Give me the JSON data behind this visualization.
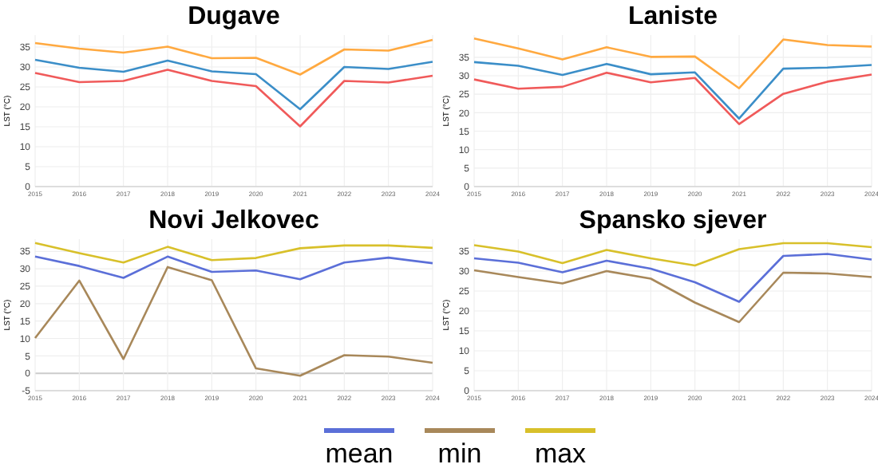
{
  "chart_data": [
    {
      "type": "line",
      "title": "Dugave",
      "ylabel": "LST (°C)",
      "x": [
        2015,
        2016,
        2017,
        2018,
        2019,
        2020,
        2021,
        2022,
        2023,
        2024
      ],
      "xlim": [
        2015,
        2024
      ],
      "xticks": [
        2015,
        2016,
        2017,
        2018,
        2019,
        2020,
        2021,
        2022,
        2023,
        2024
      ],
      "ylim": [
        0,
        38
      ],
      "yticks": [
        0,
        5,
        10,
        15,
        20,
        25,
        30,
        35
      ],
      "grid": true,
      "series": [
        {
          "color": "#3b8ec8",
          "values": [
            31.8,
            29.8,
            28.8,
            31.6,
            28.9,
            28.2,
            19.4,
            30.0,
            29.5,
            31.3
          ]
        },
        {
          "color": "#f05a5a",
          "values": [
            28.5,
            26.2,
            26.5,
            29.3,
            26.5,
            25.2,
            15.1,
            26.5,
            26.1,
            27.8
          ]
        },
        {
          "color": "#ffa940",
          "values": [
            36.0,
            34.6,
            33.6,
            35.1,
            32.2,
            32.3,
            28.1,
            34.4,
            34.1,
            36.8
          ]
        }
      ]
    },
    {
      "type": "line",
      "title": "Laniste",
      "ylabel": "LST (°C)",
      "x": [
        2015,
        2016,
        2017,
        2018,
        2019,
        2020,
        2021,
        2022,
        2023,
        2024
      ],
      "xlim": [
        2015,
        2024
      ],
      "xticks": [
        2015,
        2016,
        2017,
        2018,
        2019,
        2020,
        2021,
        2022,
        2023,
        2024
      ],
      "ylim": [
        0,
        41
      ],
      "yticks": [
        0,
        5,
        10,
        15,
        20,
        25,
        30,
        35
      ],
      "grid": true,
      "series": [
        {
          "color": "#3b8ec8",
          "values": [
            33.7,
            32.7,
            30.2,
            33.2,
            30.4,
            30.9,
            18.4,
            31.9,
            32.2,
            32.9
          ]
        },
        {
          "color": "#f05a5a",
          "values": [
            29.0,
            26.5,
            27.0,
            30.8,
            28.2,
            29.4,
            16.9,
            25.1,
            28.4,
            30.3
          ]
        },
        {
          "color": "#ffa940",
          "values": [
            40.1,
            37.4,
            34.4,
            37.7,
            35.1,
            35.2,
            26.6,
            39.8,
            38.3,
            37.9
          ]
        }
      ]
    },
    {
      "type": "line",
      "title": "Novi Jelkovec",
      "ylabel": "LST (°C)",
      "x": [
        2015,
        2016,
        2017,
        2018,
        2019,
        2020,
        2021,
        2022,
        2023,
        2024
      ],
      "xlim": [
        2015,
        2024
      ],
      "xticks": [
        2015,
        2016,
        2017,
        2018,
        2019,
        2020,
        2021,
        2022,
        2023,
        2024
      ],
      "ylim": [
        -5,
        38.5
      ],
      "yticks": [
        -5,
        0,
        5,
        10,
        15,
        20,
        25,
        30,
        35
      ],
      "grid": true,
      "series": [
        {
          "color": "#5b6fd8",
          "values": [
            33.5,
            30.8,
            27.4,
            33.5,
            29.1,
            29.5,
            27.0,
            31.8,
            33.2,
            31.6
          ]
        },
        {
          "color": "#a8885a",
          "values": [
            10.1,
            26.6,
            4.1,
            30.5,
            26.7,
            1.4,
            -0.7,
            5.2,
            4.8,
            3.0
          ]
        },
        {
          "color": "#d8c02a",
          "values": [
            37.4,
            34.5,
            31.8,
            36.3,
            32.5,
            33.1,
            35.9,
            36.7,
            36.7,
            36.0
          ]
        }
      ]
    },
    {
      "type": "line",
      "title": "Spansko  sjever",
      "ylabel": "LST (°C)",
      "x": [
        2015,
        2016,
        2017,
        2018,
        2019,
        2020,
        2021,
        2022,
        2023,
        2024
      ],
      "xlim": [
        2015,
        2024
      ],
      "xticks": [
        2015,
        2016,
        2017,
        2018,
        2019,
        2020,
        2021,
        2022,
        2023,
        2024
      ],
      "ylim": [
        0,
        38
      ],
      "yticks": [
        0,
        5,
        10,
        15,
        20,
        25,
        30,
        35
      ],
      "grid": true,
      "legend": "bottom",
      "series": [
        {
          "name": "mean",
          "color": "#5b6fd8",
          "values": [
            33.2,
            32.1,
            29.7,
            32.6,
            30.6,
            27.2,
            22.3,
            33.8,
            34.3,
            32.9
          ]
        },
        {
          "name": "min",
          "color": "#a8885a",
          "values": [
            30.2,
            28.5,
            26.9,
            30.0,
            28.1,
            22.1,
            17.2,
            29.6,
            29.4,
            28.5
          ]
        },
        {
          "name": "max",
          "color": "#d8c02a",
          "values": [
            36.5,
            34.9,
            32.0,
            35.3,
            33.2,
            31.4,
            35.5,
            37.0,
            37.0,
            36.0
          ]
        }
      ]
    }
  ]
}
